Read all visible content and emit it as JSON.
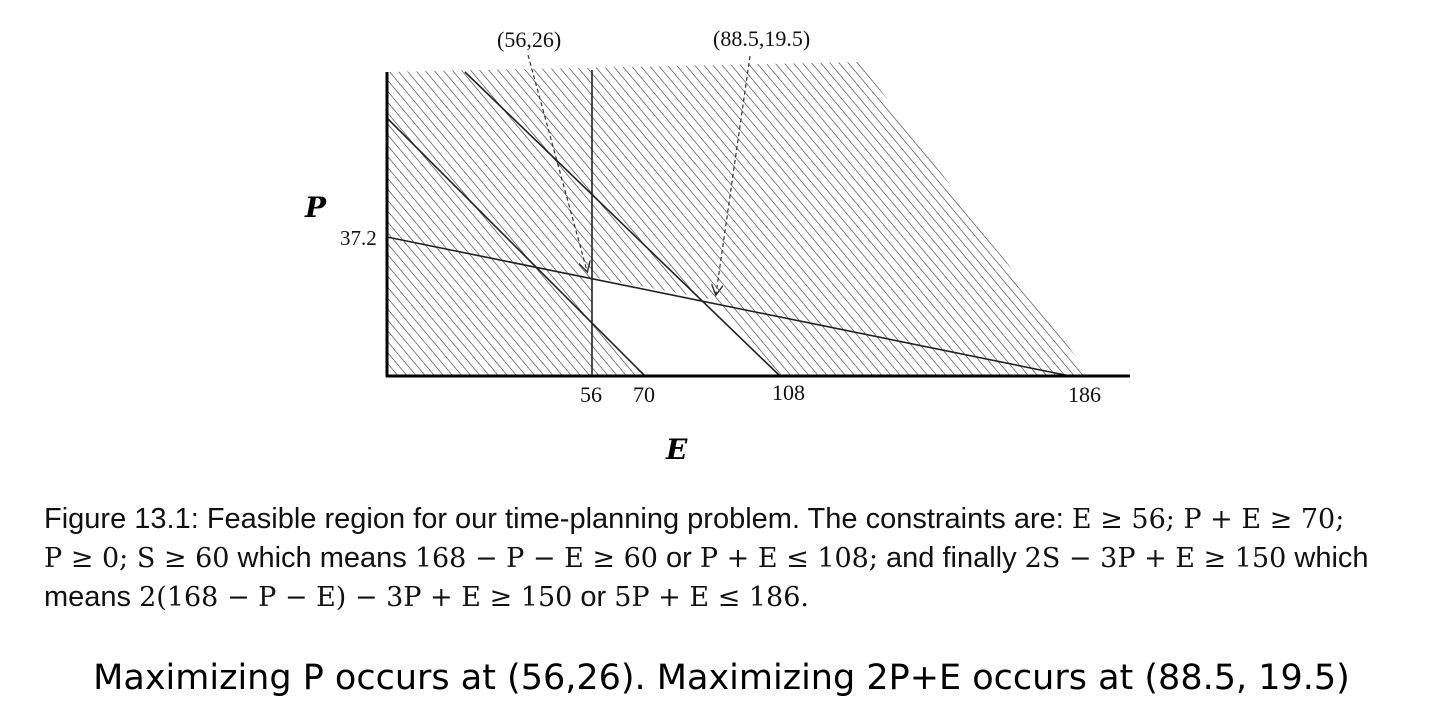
{
  "diagram": {
    "axis_labels": {
      "y": "P",
      "x": "E"
    },
    "x_tick_labels": [
      "56",
      "70",
      "108",
      "186"
    ],
    "y_tick_labels": [
      "37.2"
    ],
    "point_labels": [
      "(56,26)",
      "(88.5,19.5)"
    ],
    "constraints": [
      "E ≥ 56",
      "P + E ≥ 70",
      "P ≥ 0",
      "P + E ≤ 108",
      "5P + E ≤ 186"
    ],
    "vertices": [
      "(56,26)",
      "(88.5,19.5)"
    ]
  },
  "caption": {
    "line1_prefix": "Figure 13.1: Feasible region for our time-planning problem.  The constraints are: ",
    "line1_math": "E ≥ 56; P + E ≥ 70;",
    "line2_math_a": "P ≥ 0; S ≥ 60",
    "line2_text_a": " which means ",
    "line2_math_b": "168 − P − E ≥ 60",
    "line2_text_b": " or ",
    "line2_math_c": "P + E ≤ 108;",
    "line2_text_c": " and finally ",
    "line2_math_d": "2S − 3P + E ≥ 150",
    "line2_text_d": " which",
    "line3_text_a": "means ",
    "line3_math_a": "2(168 − P − E) − 3P + E ≥ 150",
    "line3_text_b": " or ",
    "line3_math_b": "5P + E ≤ 186."
  },
  "footer_note": "Maximizing P occurs at (56,26). Maximizing 2P+E occurs at (88.5, 19.5)"
}
